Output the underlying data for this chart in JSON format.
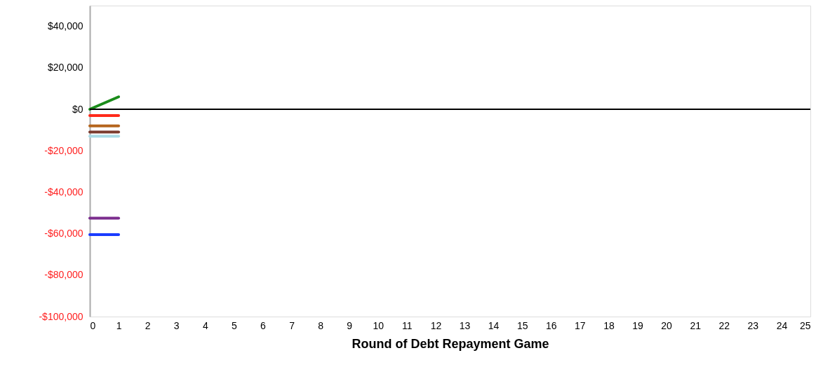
{
  "chart_data": {
    "type": "line",
    "xlabel": "Round of Debt Repayment Game",
    "x": [
      0,
      1
    ],
    "series": [
      {
        "color": "#1a8c1a",
        "values": [
          0,
          6000
        ]
      },
      {
        "color": "#ff2a1a",
        "values": [
          -3000,
          -3000
        ]
      },
      {
        "color": "#b5651d",
        "values": [
          -8000,
          -8000
        ]
      },
      {
        "color": "#7a3b2e",
        "values": [
          -11000,
          -11000
        ]
      },
      {
        "color": "#a8dbe6",
        "values": [
          -13000,
          -13000
        ]
      },
      {
        "color": "#7b2d8e",
        "values": [
          -52500,
          -52500
        ]
      },
      {
        "color": "#1a3cff",
        "values": [
          -60500,
          -60500
        ]
      }
    ],
    "xlim": [
      0,
      25
    ],
    "xticks": [
      0,
      1,
      2,
      3,
      4,
      5,
      6,
      7,
      8,
      9,
      10,
      11,
      12,
      13,
      14,
      15,
      16,
      17,
      18,
      19,
      20,
      21,
      22,
      23,
      24,
      25
    ],
    "ylim": [
      -100000,
      50000
    ],
    "yticks": [
      {
        "value": 40000,
        "label": "$40,000"
      },
      {
        "value": 20000,
        "label": "$20,000"
      },
      {
        "value": 0,
        "label": "$0"
      },
      {
        "value": -20000,
        "label": "-$20,000"
      },
      {
        "value": -40000,
        "label": "-$40,000"
      },
      {
        "value": -60000,
        "label": "-$60,000"
      },
      {
        "value": -80000,
        "label": "-$80,000"
      },
      {
        "value": -100000,
        "label": "-$100,000"
      }
    ],
    "ref_lines": [
      {
        "axis": "y",
        "value": 0,
        "color": "#000000"
      }
    ],
    "grid": false,
    "marker": "none",
    "line_style": "solid"
  }
}
